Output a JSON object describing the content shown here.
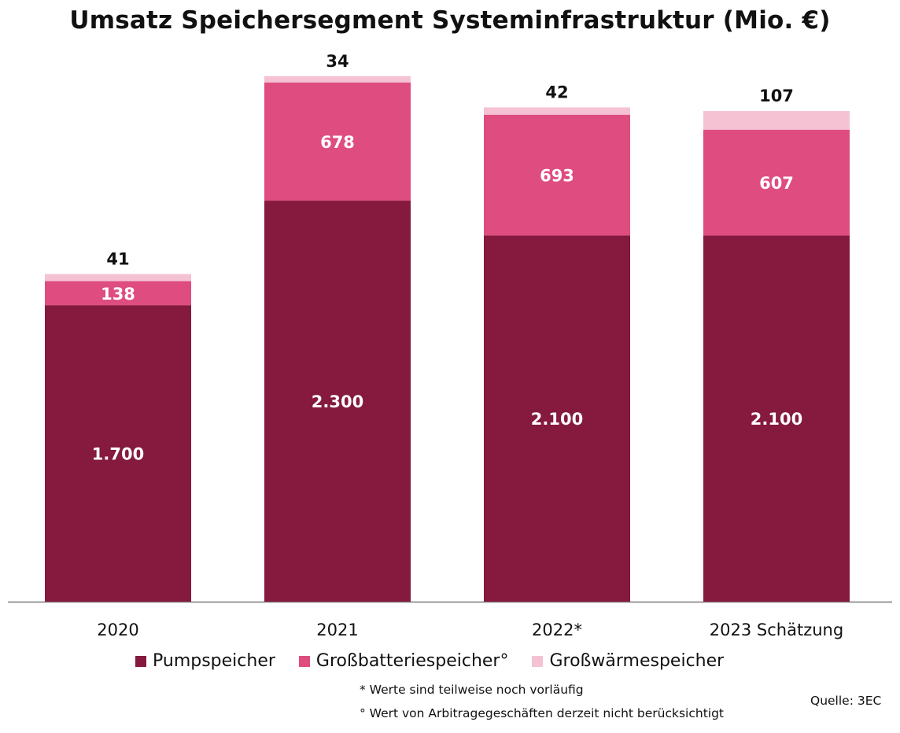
{
  "chart_data": {
    "type": "bar",
    "stacked": true,
    "title": "Umsatz Speichersegment Systeminfrastruktur (Mio. €)",
    "categories": [
      "2020",
      "2021",
      "2022*",
      "2023 Schätzung"
    ],
    "series": [
      {
        "name": "Pumpspeicher",
        "values": [
          1700,
          2300,
          2100,
          2100
        ],
        "labels": [
          "1.700",
          "2.300",
          "2.100",
          "2.100"
        ],
        "color": "#85193e",
        "label_color": "#ffffff"
      },
      {
        "name": "Großbatteriespeicher°",
        "values": [
          138,
          678,
          693,
          607
        ],
        "labels": [
          "138",
          "678",
          "693",
          "607"
        ],
        "color": "#de4c80",
        "label_color": "#ffffff"
      },
      {
        "name": "Großwärmespeicher",
        "values": [
          41,
          34,
          42,
          107
        ],
        "labels": [
          "41",
          "34",
          "42",
          "107"
        ],
        "color": "#f4c2d3",
        "label_color": "#111111"
      }
    ],
    "ylim": [
      0,
      3000
    ],
    "grid": false,
    "legend_position": "bottom"
  },
  "notes": [
    "* Werte sind teilweise noch vorläufig",
    "° Wert von Arbitragegeschäften derzeit nicht berücksichtigt"
  ],
  "source": "Quelle: 3EC"
}
